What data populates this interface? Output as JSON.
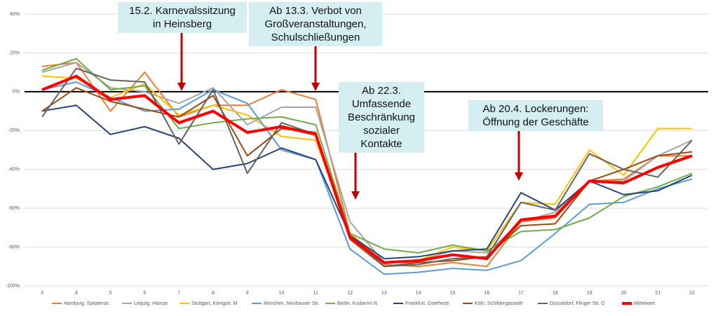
{
  "chart_data": {
    "type": "line",
    "categories": [
      "3",
      "4",
      "5",
      "6",
      "7",
      "8",
      "9",
      "10",
      "11",
      "12",
      "13",
      "14",
      "15",
      "16",
      "17",
      "18",
      "19",
      "20",
      "21",
      "22"
    ],
    "ylim": [
      -100,
      40
    ],
    "yticks": [
      {
        "value": 40,
        "label": "40%"
      },
      {
        "value": 20,
        "label": "20%"
      },
      {
        "value": 0,
        "label": "0%"
      },
      {
        "value": -20,
        "label": "-20%"
      },
      {
        "value": -40,
        "label": "-40%"
      },
      {
        "value": -60,
        "label": "-60%"
      },
      {
        "value": -80,
        "label": "-80%"
      },
      {
        "value": -100,
        "label": "-100%"
      }
    ],
    "grid": true,
    "legend": "bottom",
    "series": [
      {
        "name": "Hamburg, Spitalerstr.",
        "color": "#ed7d31",
        "values": [
          13,
          15,
          -10,
          10,
          -13,
          -7,
          -7,
          1,
          -4,
          -73,
          -89,
          -90,
          -88,
          -90,
          -67,
          -65,
          -46,
          -45,
          -33,
          -33
        ]
      },
      {
        "name": "Leipzig, Hainstr.",
        "color": "#a5a5a5",
        "values": [
          10,
          15,
          2,
          0,
          -6,
          2,
          -17,
          -8,
          -8,
          -67,
          -88,
          -87,
          -82,
          -83,
          -67,
          -62,
          -46,
          -46,
          -33,
          -25
        ]
      },
      {
        "name": "Stuttgart, Königstr. M",
        "color": "#ffc000",
        "values": [
          8,
          7,
          -3,
          4,
          -12,
          -7,
          -12,
          -23,
          -25,
          -73,
          -88,
          -87,
          -80,
          -82,
          -57,
          -58,
          -30,
          -43,
          -19,
          -19
        ]
      },
      {
        "name": "München, Neuhauser Str.",
        "color": "#5b9bd5",
        "values": [
          1,
          5,
          -3,
          -10,
          -9,
          1,
          -6,
          -30,
          -35,
          -81,
          -94,
          -93,
          -91,
          -92,
          -87,
          -73,
          -58,
          -57,
          -50,
          -45
        ]
      },
      {
        "name": "Berlin, Kudamm N",
        "color": "#70ad47",
        "values": [
          11,
          17,
          1,
          3,
          -19,
          -16,
          -14,
          -13,
          -17,
          -73,
          -81,
          -83,
          -79,
          -82,
          -72,
          -71,
          -65,
          -54,
          -49,
          -42
        ]
      },
      {
        "name": "Frankfurt, Goethestr.",
        "color": "#264478",
        "values": [
          -10,
          -7,
          -22,
          -18,
          -24,
          -40,
          -37,
          -29,
          -35,
          -74,
          -86,
          -85,
          -82,
          -81,
          -52,
          -61,
          -46,
          -53,
          -51,
          -43
        ]
      },
      {
        "name": "Köln, SchildergasseW",
        "color": "#9e480e",
        "values": [
          -10,
          2,
          -5,
          -9,
          -13,
          -2,
          -33,
          -19,
          -21,
          -76,
          -90,
          -88,
          -87,
          -85,
          -69,
          -68,
          -46,
          -40,
          -33,
          -31
        ]
      },
      {
        "name": "Düsseldorf, Flinger Str. O",
        "color": "#636363",
        "values": [
          -13,
          12,
          6,
          5,
          -27,
          1,
          -42,
          -16,
          -22,
          -74,
          -90,
          -89,
          -86,
          -85,
          -57,
          -61,
          -32,
          -40,
          -44,
          -25
        ]
      },
      {
        "name": "Mittelwert",
        "color": "#ff0000",
        "values": [
          1,
          8,
          -4,
          -2,
          -16,
          -10,
          -21,
          -18,
          -22,
          -75,
          -88,
          -87,
          -84,
          -86,
          -66,
          -64,
          -46,
          -47,
          -39,
          -33
        ]
      }
    ],
    "annotations": [
      {
        "lines": [
          "15.2. Karnevalssitzung",
          "in Heinsberg"
        ]
      },
      {
        "lines": [
          "Ab 13.3. Verbot von",
          "Großveranstaltungen,",
          "Schulschließungen"
        ]
      },
      {
        "lines": [
          "Ab 22.3.",
          "Umfassende",
          "Beschränkung",
          "sozialer",
          "Kontakte"
        ]
      },
      {
        "lines": [
          "Ab 20.4. Lockerungen:",
          "Öffnung der Geschäfte"
        ]
      }
    ]
  }
}
